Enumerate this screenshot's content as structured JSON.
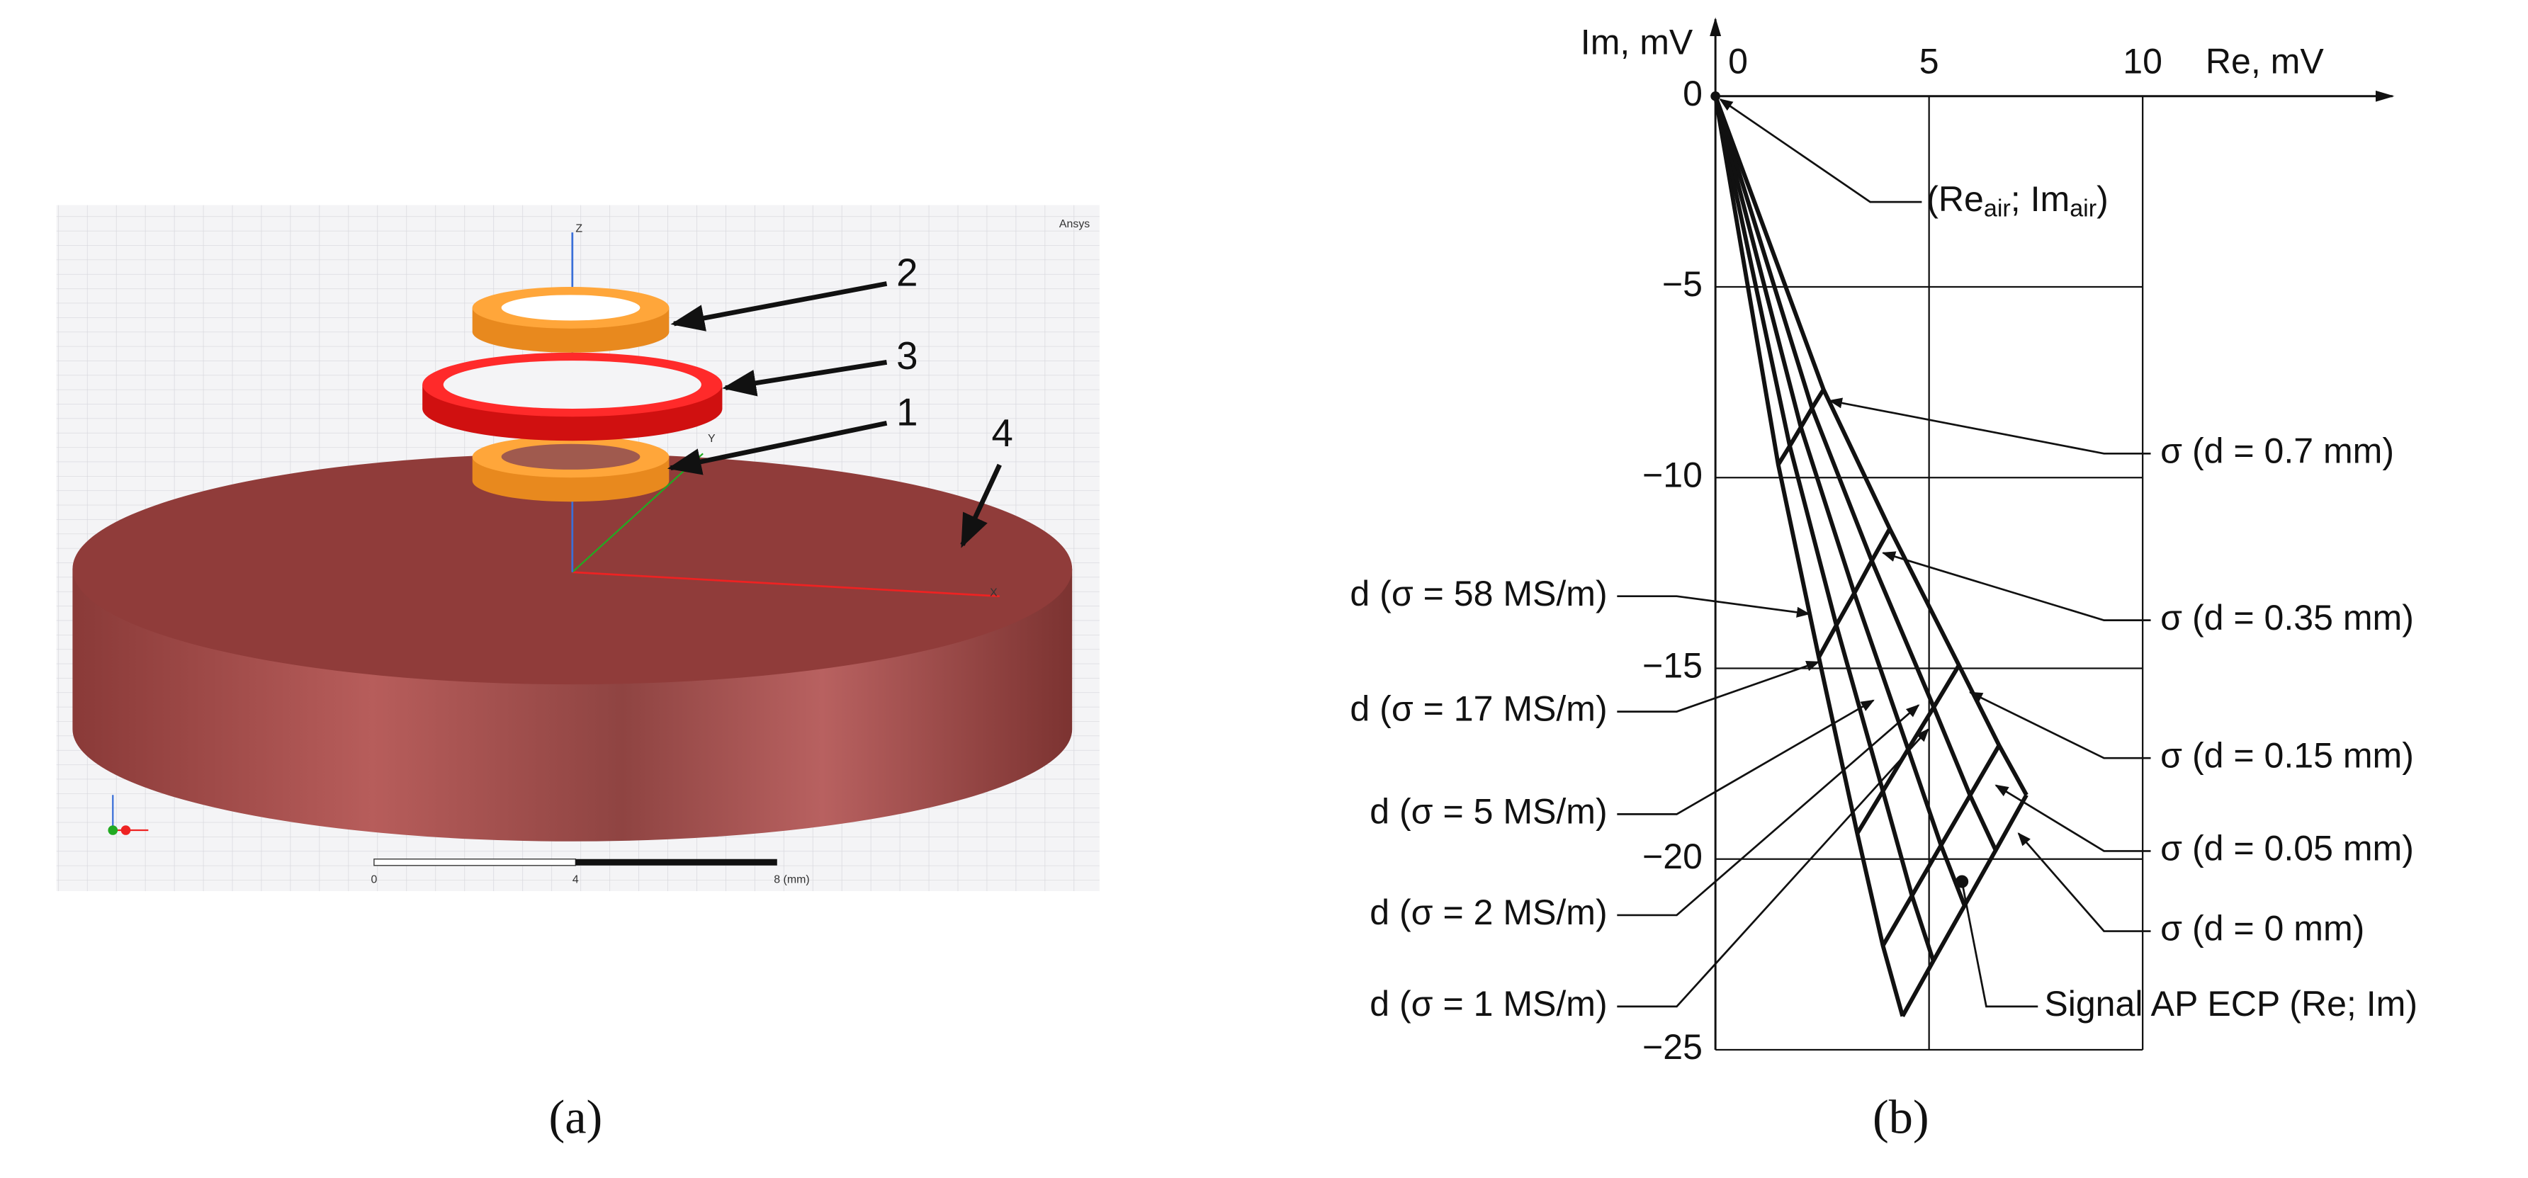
{
  "panel_a": {
    "brand": "Ansys",
    "part_labels": [
      "2",
      "3",
      "1",
      "4"
    ],
    "axis_labels": [
      "Z",
      "Y",
      "X"
    ],
    "scale_labels": [
      "0",
      "4",
      "8 (mm)"
    ],
    "caption": "(a)"
  },
  "chart_data": {
    "type": "hodograph",
    "caption": "(b)",
    "x_label": "Re, mV",
    "y_label": "Im, mV",
    "xlim": [
      0,
      10
    ],
    "ylim": [
      -25,
      0
    ],
    "xticks": [
      0,
      5,
      10
    ],
    "yticks": [
      0,
      {
        "value": -5,
        "label": "−5"
      },
      {
        "value": -10,
        "label": "−10"
      },
      {
        "value": -15,
        "label": "−15"
      },
      {
        "value": -20,
        "label": "−20"
      },
      {
        "value": -25,
        "label": "−25"
      }
    ],
    "grid": true,
    "color": "#111111",
    "air_point": {
      "x": 0,
      "y": 0,
      "label_parts": [
        "(Re",
        "air",
        "; Im",
        "air",
        ")"
      ]
    },
    "d_curve_labels": [
      "σ (d = 0.7 mm)",
      "σ (d = 0.35 mm)",
      "σ (d = 0.15 mm)",
      "σ (d = 0.05 mm)",
      "σ (d = 0 mm)"
    ],
    "series": [
      {
        "name": "d (σ = 58 MS/m)",
        "x": [
          1.47,
          2.42,
          3.32,
          3.92,
          4.38
        ],
        "values": [
          -9.66,
          -14.71,
          -19.33,
          -22.27,
          -24.12
        ]
      },
      {
        "name": "d (σ = 17 MS/m)",
        "x": [
          1.74,
          2.83,
          3.92,
          4.6,
          5.1
        ],
        "values": [
          -9.17,
          -13.87,
          -18.22,
          -20.96,
          -22.67
        ]
      },
      {
        "name": "d (σ = 5 MS/m)",
        "x": [
          2.0,
          3.25,
          4.51,
          5.28,
          5.83
        ],
        "values": [
          -8.68,
          -13.03,
          -17.12,
          -19.64,
          -21.22
        ]
      },
      {
        "name": "d (σ = 2 MS/m)",
        "x": [
          2.26,
          3.66,
          5.11,
          5.96,
          6.56
        ],
        "values": [
          -8.18,
          -12.18,
          -16.02,
          -18.33,
          -19.77
        ]
      },
      {
        "name": "d (σ = 1 MS/m)",
        "x": [
          2.53,
          4.08,
          5.7,
          6.64,
          7.28
        ],
        "values": [
          -7.69,
          -11.34,
          -14.92,
          -17.02,
          -18.32
        ]
      }
    ],
    "signal": {
      "label": "Signal AP ECP (Re; Im)",
      "x": 5.77,
      "y": -20.59
    }
  }
}
